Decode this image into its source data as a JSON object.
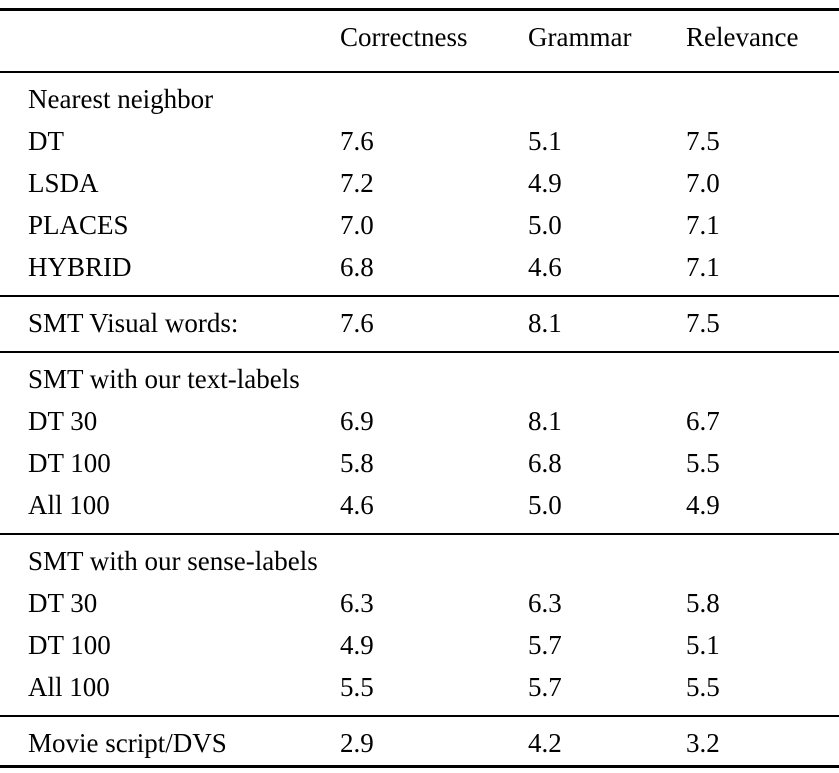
{
  "table": {
    "columns": [
      "Correctness",
      "Grammar",
      "Relevance"
    ],
    "sections": [
      {
        "header": "Nearest neighbor",
        "rows": [
          {
            "label": "DT",
            "values": [
              "7.6",
              "5.1",
              "7.5"
            ]
          },
          {
            "label": "LSDA",
            "values": [
              "7.2",
              "4.9",
              "7.0"
            ]
          },
          {
            "label": "PLACES",
            "values": [
              "7.0",
              "5.0",
              "7.1"
            ]
          },
          {
            "label": "HYBRID",
            "values": [
              "6.8",
              "4.6",
              "7.1"
            ]
          }
        ]
      },
      {
        "header": "",
        "rows": [
          {
            "label": "SMT Visual words:",
            "values": [
              "7.6",
              "8.1",
              "7.5"
            ]
          }
        ]
      },
      {
        "header": "SMT with our text-labels",
        "rows": [
          {
            "label": "DT 30",
            "values": [
              "6.9",
              "8.1",
              "6.7"
            ]
          },
          {
            "label": "DT 100",
            "values": [
              "5.8",
              "6.8",
              "5.5"
            ]
          },
          {
            "label": "All 100",
            "values": [
              "4.6",
              "5.0",
              "4.9"
            ]
          }
        ]
      },
      {
        "header": "SMT with our sense-labels",
        "rows": [
          {
            "label": "DT 30",
            "values": [
              "6.3",
              "6.3",
              "5.8"
            ]
          },
          {
            "label": "DT 100",
            "values": [
              "4.9",
              "5.7",
              "5.1"
            ]
          },
          {
            "label": "All 100",
            "values": [
              "5.5",
              "5.7",
              "5.5"
            ]
          }
        ]
      },
      {
        "header": "",
        "rows": [
          {
            "label": "Movie script/DVS",
            "values": [
              "2.9",
              "4.2",
              "3.2"
            ]
          }
        ]
      }
    ],
    "colors": {
      "text": "#000000",
      "rule": "#000000",
      "background": "#ffffff"
    }
  }
}
